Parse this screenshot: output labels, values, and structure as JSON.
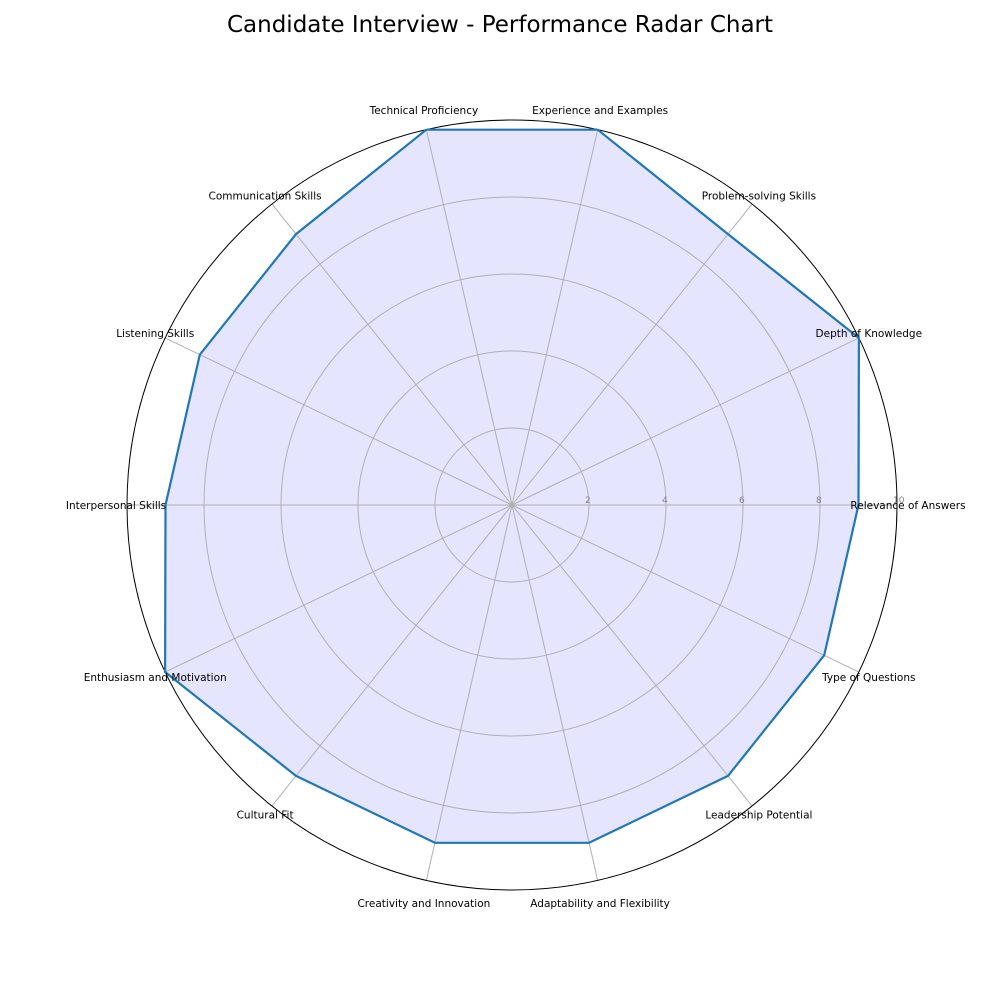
{
  "chart_data": {
    "type": "radar",
    "title": "Candidate Interview - Performance Radar Chart",
    "categories": [
      "Relevance of Answers",
      "Depth of Knowledge",
      "Problem-solving Skills",
      "Experience and Examples",
      "Technical Proficiency",
      "Communication Skills",
      "Listening Skills",
      "Interpersonal Skills",
      "Enthusiasm and Motivation",
      "Cultural Fit",
      "Creativity and Innovation",
      "Adaptability and Flexibility",
      "Leadership Potential",
      "Type of Questions"
    ],
    "values": [
      9,
      10,
      9,
      10,
      10,
      9,
      9,
      9,
      10,
      9,
      9,
      9,
      9,
      9
    ],
    "rlim": [
      0,
      10
    ],
    "rticks": [
      2,
      4,
      6,
      8,
      10
    ],
    "rtick_labels": [
      "2",
      "4",
      "6",
      "8",
      "10"
    ],
    "grid": true,
    "colors": {
      "line": "#1f77b4",
      "fill": "#e5e5ff",
      "grid": "#b0b0b0",
      "tick": "#808080"
    }
  }
}
